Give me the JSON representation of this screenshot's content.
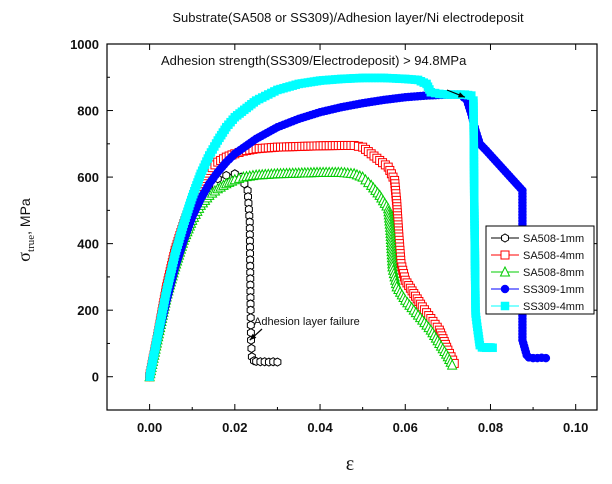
{
  "chart_data": {
    "type": "scatter",
    "title": "Substrate(SA508 or SS309)/Adhesion layer/Ni electrodeposit",
    "xlabel": "ε",
    "ylabel": "σtrue, MPa",
    "ylabel_main": "σ",
    "ylabel_sub": "true",
    "ylabel_unit": ", MPa",
    "xlim": [
      -0.01,
      0.105
    ],
    "ylim": [
      -100,
      1000
    ],
    "x_ticks": [
      0.0,
      0.02,
      0.04,
      0.06,
      0.08,
      0.1
    ],
    "x_tick_labels": [
      "0.00",
      "0.02",
      "0.04",
      "0.06",
      "0.08",
      "0.10"
    ],
    "y_ticks": [
      0,
      200,
      400,
      600,
      800,
      1000
    ],
    "y_tick_labels": [
      "0",
      "200",
      "400",
      "600",
      "800",
      "1000"
    ],
    "legend_position": "right",
    "grid": false,
    "annotations": [
      {
        "text": "Adhesion strength(SS309/Electrodeposit) > 94.8MPa",
        "x": 0.0015,
        "y": 960,
        "arrow_to": [
          0.074,
          840
        ]
      },
      {
        "text": "Adhesion layer failure",
        "x": 0.0245,
        "y": 180,
        "arrow_to": [
          0.0235,
          110
        ]
      }
    ],
    "series": [
      {
        "name": "SA508-1mm",
        "marker": "hexagon-open",
        "color": "#000000",
        "points": [
          [
            0.0,
            0
          ],
          [
            0.002,
            120
          ],
          [
            0.004,
            240
          ],
          [
            0.006,
            340
          ],
          [
            0.008,
            420
          ],
          [
            0.01,
            490
          ],
          [
            0.012,
            540
          ],
          [
            0.014,
            575
          ],
          [
            0.016,
            595
          ],
          [
            0.018,
            605
          ],
          [
            0.02,
            610
          ],
          [
            0.0215,
            600
          ],
          [
            0.023,
            560
          ],
          [
            0.0235,
            465
          ],
          [
            0.0237,
            200
          ],
          [
            0.0238,
            110
          ],
          [
            0.024,
            60
          ],
          [
            0.0245,
            48
          ],
          [
            0.025,
            46
          ],
          [
            0.026,
            45
          ],
          [
            0.027,
            45
          ],
          [
            0.028,
            44
          ],
          [
            0.029,
            45
          ],
          [
            0.03,
            44
          ]
        ]
      },
      {
        "name": "SA508-4mm",
        "marker": "square-open",
        "color": "#ff0000",
        "points": [
          [
            0.0,
            0
          ],
          [
            0.002,
            130
          ],
          [
            0.004,
            270
          ],
          [
            0.006,
            380
          ],
          [
            0.008,
            460
          ],
          [
            0.01,
            530
          ],
          [
            0.012,
            580
          ],
          [
            0.014,
            620
          ],
          [
            0.016,
            645
          ],
          [
            0.018,
            660
          ],
          [
            0.02,
            670
          ],
          [
            0.022,
            678
          ],
          [
            0.025,
            685
          ],
          [
            0.03,
            690
          ],
          [
            0.035,
            692
          ],
          [
            0.04,
            694
          ],
          [
            0.045,
            695
          ],
          [
            0.048,
            695
          ],
          [
            0.05,
            690
          ],
          [
            0.052,
            670
          ],
          [
            0.054,
            650
          ],
          [
            0.056,
            630
          ],
          [
            0.0575,
            590
          ],
          [
            0.058,
            520
          ],
          [
            0.0585,
            420
          ],
          [
            0.059,
            340
          ],
          [
            0.06,
            290
          ],
          [
            0.062,
            250
          ],
          [
            0.064,
            210
          ],
          [
            0.066,
            175
          ],
          [
            0.068,
            140
          ],
          [
            0.07,
            80
          ],
          [
            0.0715,
            40
          ]
        ]
      },
      {
        "name": "SA508-8mm",
        "marker": "triangle-open",
        "color": "#00cc00",
        "points": [
          [
            0.0,
            0
          ],
          [
            0.002,
            120
          ],
          [
            0.004,
            240
          ],
          [
            0.006,
            330
          ],
          [
            0.008,
            410
          ],
          [
            0.01,
            470
          ],
          [
            0.012,
            515
          ],
          [
            0.014,
            545
          ],
          [
            0.016,
            565
          ],
          [
            0.018,
            580
          ],
          [
            0.02,
            592
          ],
          [
            0.022,
            600
          ],
          [
            0.025,
            606
          ],
          [
            0.03,
            610
          ],
          [
            0.035,
            612
          ],
          [
            0.04,
            614
          ],
          [
            0.045,
            614
          ],
          [
            0.048,
            610
          ],
          [
            0.05,
            600
          ],
          [
            0.052,
            575
          ],
          [
            0.054,
            545
          ],
          [
            0.056,
            505
          ],
          [
            0.0565,
            440
          ],
          [
            0.057,
            330
          ],
          [
            0.058,
            270
          ],
          [
            0.06,
            230
          ],
          [
            0.062,
            200
          ],
          [
            0.064,
            170
          ],
          [
            0.066,
            140
          ],
          [
            0.068,
            100
          ],
          [
            0.07,
            60
          ],
          [
            0.071,
            35
          ]
        ]
      },
      {
        "name": "SS309-1mm",
        "marker": "circle-filled",
        "color": "#0000ff",
        "points": [
          [
            0.0,
            0
          ],
          [
            0.002,
            120
          ],
          [
            0.004,
            230
          ],
          [
            0.006,
            330
          ],
          [
            0.008,
            410
          ],
          [
            0.01,
            480
          ],
          [
            0.012,
            535
          ],
          [
            0.014,
            580
          ],
          [
            0.016,
            615
          ],
          [
            0.018,
            645
          ],
          [
            0.02,
            670
          ],
          [
            0.025,
            715
          ],
          [
            0.03,
            750
          ],
          [
            0.035,
            775
          ],
          [
            0.04,
            795
          ],
          [
            0.045,
            810
          ],
          [
            0.05,
            822
          ],
          [
            0.055,
            832
          ],
          [
            0.06,
            840
          ],
          [
            0.065,
            845
          ],
          [
            0.07,
            848
          ],
          [
            0.073,
            848
          ],
          [
            0.0745,
            830
          ],
          [
            0.0755,
            790
          ],
          [
            0.0765,
            740
          ],
          [
            0.0775,
            700
          ],
          [
            0.079,
            680
          ],
          [
            0.0875,
            560
          ],
          [
            0.0875,
            110
          ],
          [
            0.0885,
            65
          ],
          [
            0.089,
            58
          ],
          [
            0.09,
            56
          ],
          [
            0.091,
            56
          ],
          [
            0.092,
            57
          ],
          [
            0.093,
            56
          ]
        ]
      },
      {
        "name": "SS309-4mm",
        "marker": "square-filled",
        "color": "#00ffff",
        "points": [
          [
            0.0,
            0
          ],
          [
            0.002,
            130
          ],
          [
            0.004,
            260
          ],
          [
            0.006,
            370
          ],
          [
            0.008,
            460
          ],
          [
            0.01,
            540
          ],
          [
            0.012,
            610
          ],
          [
            0.014,
            665
          ],
          [
            0.016,
            710
          ],
          [
            0.018,
            750
          ],
          [
            0.02,
            780
          ],
          [
            0.025,
            830
          ],
          [
            0.03,
            862
          ],
          [
            0.035,
            880
          ],
          [
            0.04,
            890
          ],
          [
            0.045,
            895
          ],
          [
            0.05,
            898
          ],
          [
            0.055,
            898
          ],
          [
            0.06,
            895
          ],
          [
            0.063,
            892
          ],
          [
            0.065,
            880
          ],
          [
            0.066,
            855
          ],
          [
            0.068,
            850
          ],
          [
            0.07,
            848
          ],
          [
            0.072,
            848
          ],
          [
            0.074,
            848
          ],
          [
            0.0755,
            845
          ],
          [
            0.076,
            830
          ],
          [
            0.0762,
            520
          ],
          [
            0.0765,
            190
          ],
          [
            0.077,
            140
          ],
          [
            0.0775,
            95
          ],
          [
            0.078,
            88
          ],
          [
            0.0785,
            88
          ],
          [
            0.079,
            87
          ],
          [
            0.0795,
            88
          ],
          [
            0.08,
            88
          ],
          [
            0.0805,
            87
          ]
        ]
      }
    ]
  }
}
